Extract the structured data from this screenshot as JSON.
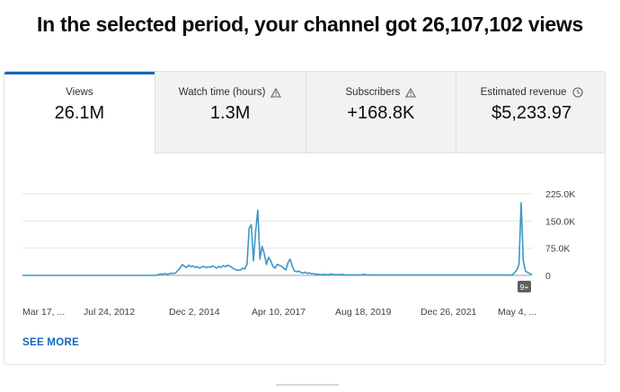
{
  "headline": "In the selected period, your channel got 26,107,102 views",
  "tabs": [
    {
      "label": "Views",
      "value": "26.1M",
      "icon": null
    },
    {
      "label": "Watch time (hours)",
      "value": "1.3M",
      "icon": "warning-icon"
    },
    {
      "label": "Subscribers",
      "value": "+168.8K",
      "icon": "warning-icon"
    },
    {
      "label": "Estimated revenue",
      "value": "$5,233.97",
      "icon": "clock-icon"
    }
  ],
  "see_more": "SEE MORE",
  "badge": "9+",
  "colors": {
    "accent": "#1565c0",
    "line": "#3d97c7",
    "tab_inactive_bg": "#f2f2f2"
  },
  "chart_data": {
    "type": "line",
    "x_ticks": [
      "Mar 17, ...",
      "Jul 24, 2012",
      "Dec 2, 2014",
      "Apr 10, 2017",
      "Aug 18, 2019",
      "Dec 26, 2021",
      "May 4, ..."
    ],
    "y_ticks": [
      "225.0K",
      "150.0K",
      "75.0K",
      "0"
    ],
    "ylim": [
      0,
      225000
    ],
    "grid": true,
    "series": [
      {
        "values": [
          0,
          0,
          0,
          0,
          0,
          0,
          0,
          0,
          0,
          0,
          0,
          0,
          0,
          0,
          0,
          0,
          0,
          0,
          0,
          0,
          0,
          0,
          0,
          0,
          0,
          0,
          0,
          0,
          0,
          0,
          0,
          0,
          0,
          0,
          0,
          0,
          0,
          0,
          0,
          0,
          0,
          0,
          0,
          0,
          0,
          0,
          0,
          0,
          0,
          0,
          0,
          0,
          0,
          0,
          0,
          0,
          0,
          0,
          0,
          0,
          0,
          0,
          500,
          2000,
          4000,
          3000,
          5000,
          3000,
          4000,
          6000,
          5000,
          7000,
          14000,
          20000,
          30000,
          25000,
          22000,
          28000,
          24000,
          26000,
          22000,
          24000,
          20000,
          23000,
          25000,
          21000,
          24000,
          22000,
          26000,
          23000,
          20000,
          25000,
          22000,
          27000,
          24000,
          28000,
          26000,
          22000,
          18000,
          15000,
          14000,
          15000,
          20000,
          18000,
          30000,
          130000,
          140000,
          40000,
          120000,
          180000,
          45000,
          80000,
          60000,
          30000,
          50000,
          40000,
          25000,
          20000,
          30000,
          28000,
          25000,
          20000,
          15000,
          35000,
          45000,
          25000,
          12000,
          10000,
          12000,
          8000,
          6000,
          9000,
          5000,
          7000,
          4000,
          5000,
          3000,
          3000,
          2000,
          2000,
          3000,
          2000,
          2000,
          4000,
          2000,
          2000,
          2000,
          2000,
          3000,
          1500,
          1500,
          1500,
          1500,
          1500,
          1500,
          1500,
          1500,
          1500,
          3000,
          1500,
          1500,
          1500,
          1500,
          1200,
          1200,
          1200,
          1200,
          1200,
          1200,
          1200,
          1200,
          1200,
          1200,
          1200,
          1200,
          1200,
          1200,
          1200,
          1200,
          1200,
          1200,
          1200,
          1200,
          1200,
          1200,
          1200,
          1200,
          1200,
          1200,
          1200,
          1200,
          1200,
          1200,
          1200,
          1200,
          1200,
          1200,
          1200,
          1200,
          1200,
          1200,
          1200,
          1200,
          1200,
          1200,
          1200,
          1200,
          1200,
          1200,
          1200,
          1200,
          1200,
          1200,
          1200,
          1200,
          1200,
          1200,
          1200,
          1200,
          1200,
          1200,
          1200,
          1200,
          1200,
          1200,
          1200,
          1200,
          1500,
          8000,
          15000,
          30000,
          200000,
          40000,
          12000,
          8000,
          5000,
          3000
        ]
      }
    ]
  }
}
